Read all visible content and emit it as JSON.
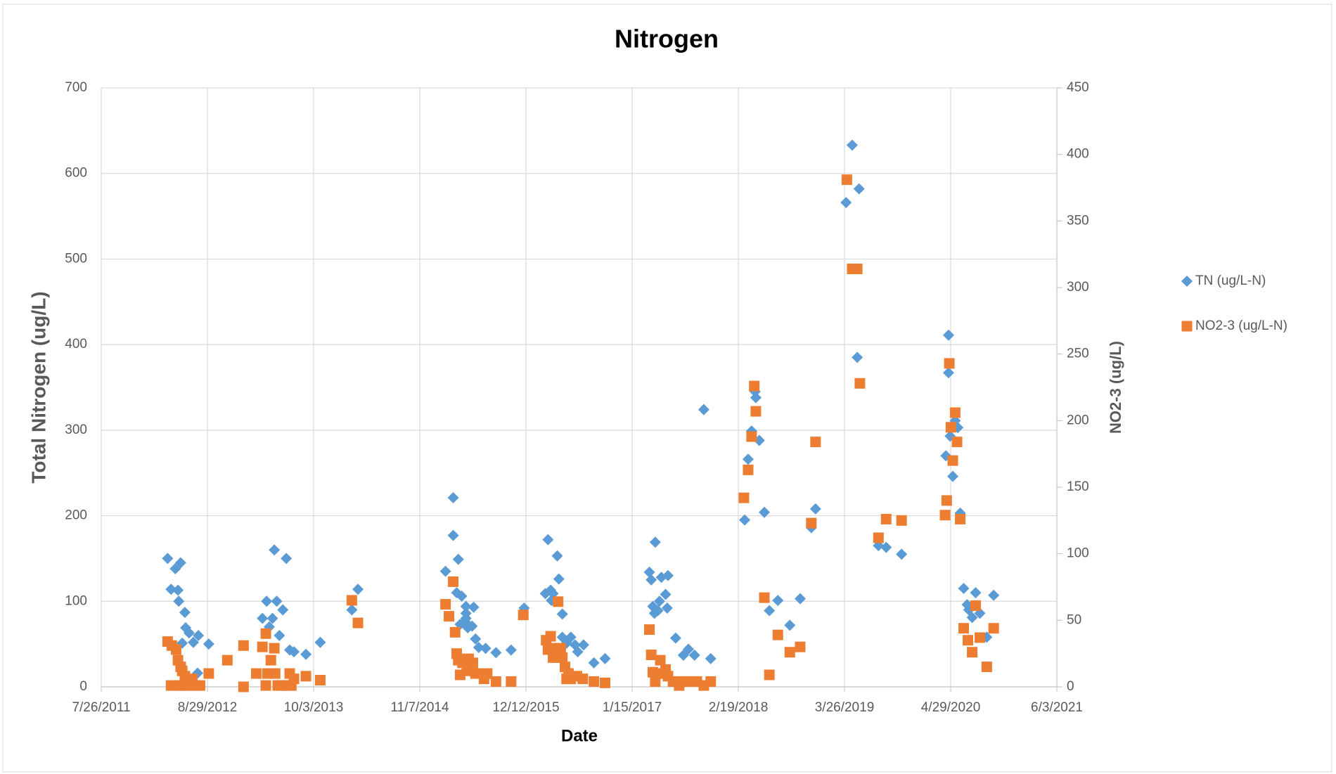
{
  "chart_data": {
    "type": "scatter",
    "title": "Nitrogen",
    "x_label": "Date",
    "y_label": "Total Nitrogen (ug/L)",
    "y2_label": "NO2-3 (ug/L)",
    "xlim": [
      40750,
      44350
    ],
    "xticks": [
      {
        "value": 40750,
        "label": "7/26/2011"
      },
      {
        "value": 41150,
        "label": "8/29/2012"
      },
      {
        "value": 41550,
        "label": "10/3/2013"
      },
      {
        "value": 41950,
        "label": "11/7/2014"
      },
      {
        "value": 42350,
        "label": "12/12/2015"
      },
      {
        "value": 42750,
        "label": "1/15/2017"
      },
      {
        "value": 43150,
        "label": "2/19/2018"
      },
      {
        "value": 43550,
        "label": "3/26/2019"
      },
      {
        "value": 43950,
        "label": "4/29/2020"
      },
      {
        "value": 44350,
        "label": "6/3/2021"
      }
    ],
    "ylim": [
      0,
      700
    ],
    "yticks": [
      0,
      100,
      200,
      300,
      400,
      500,
      600,
      700
    ],
    "y2lim": [
      0,
      450
    ],
    "y2ticks": [
      0,
      50,
      100,
      150,
      200,
      250,
      300,
      350,
      400,
      450
    ],
    "grid": true,
    "legend": "right",
    "series": [
      {
        "name": "TN (ug/L-N)",
        "color": "#5b9bd5",
        "marker": "diamond",
        "x": [
          41000,
          41013,
          41029,
          41039,
          41049,
          41042,
          41065,
          41055,
          41068,
          41081,
          41097,
          41116,
          41113,
          41155,
          41357,
          41373,
          41383,
          41395,
          41402,
          41411,
          41421,
          41434,
          41447,
          41460,
          41476,
          41521,
          41575,
          41694,
          41717,
          42047,
          42076,
          42076,
          42095,
          42089,
          42108,
          42102,
          42121,
          42124,
          42124,
          42124,
          42131,
          42147,
          42153,
          42160,
          42172,
          42198,
          42237,
          42294,
          42343,
          42423,
          42433,
          42443,
          42452,
          42446,
          42468,
          42474,
          42487,
          42487,
          42503,
          42519,
          42535,
          42545,
          42567,
          42606,
          42648,
          42815,
          42822,
          42837,
          42828,
          42834,
          42847,
          42853,
          42860,
          42876,
          42885,
          42882,
          42914,
          42943,
          42962,
          42985,
          43020,
          43046,
          43174,
          43187,
          43200,
          43213,
          43216,
          43229,
          43248,
          43267,
          43299,
          43344,
          43383,
          43425,
          43441,
          43556,
          43579,
          43605,
          43598,
          43678,
          43707,
          43765,
          43942,
          43932,
          43942,
          43948,
          43958,
          43967,
          43977,
          43986,
          43999,
          44012,
          44018,
          44031,
          44044,
          44060,
          44086,
          44112
        ],
        "values": [
          150,
          114,
          138,
          113,
          145,
          100,
          87,
          51,
          69,
          63,
          52,
          60,
          16,
          50,
          80,
          100,
          70,
          80,
          160,
          100,
          60,
          90,
          150,
          43,
          41,
          38,
          52,
          90,
          114,
          135,
          221,
          177,
          149,
          110,
          106,
          73,
          76,
          94,
          86,
          80,
          69,
          71,
          93,
          56,
          46,
          45,
          40,
          43,
          92,
          109,
          172,
          113,
          109,
          101,
          153,
          126,
          85,
          58,
          51,
          58,
          49,
          41,
          49,
          28,
          33,
          134,
          125,
          169,
          94,
          86,
          89,
          100,
          128,
          108,
          130,
          92,
          57,
          37,
          44,
          37,
          324,
          33,
          195,
          266,
          299,
          345,
          338,
          288,
          204,
          89,
          101,
          72,
          103,
          186,
          208,
          566,
          633,
          582,
          385,
          165,
          163,
          155,
          411,
          270,
          367,
          293,
          246,
          311,
          303,
          203,
          115,
          96,
          90,
          81,
          110,
          86,
          58,
          107
        ]
      },
      {
        "name": "NO2-3 (ug/L-N)",
        "color": "#ed7d31",
        "marker": "square",
        "axis": "y2",
        "x": [
          41000,
          41016,
          41032,
          41039,
          41049,
          41055,
          41065,
          41074,
          41013,
          41042,
          41061,
          41081,
          41093,
          41103,
          41122,
          41155,
          41225,
          41286,
          41286,
          41334,
          41357,
          41370,
          41376,
          41389,
          41402,
          41370,
          41405,
          41415,
          41431,
          41447,
          41460,
          41466,
          41476,
          41521,
          41575,
          41694,
          41717,
          42047,
          42060,
          42076,
          42083,
          42089,
          42095,
          42102,
          42111,
          42121,
          42127,
          42134,
          42140,
          42150,
          42160,
          42182,
          42192,
          42204,
          42237,
          42294,
          42340,
          42426,
          42433,
          42443,
          42452,
          42459,
          42465,
          42471,
          42481,
          42487,
          42497,
          42503,
          42510,
          42519,
          42542,
          42564,
          42606,
          42648,
          42815,
          42822,
          42828,
          42837,
          42847,
          42856,
          42866,
          42876,
          42885,
          42904,
          42927,
          42936,
          42952,
          42975,
          42994,
          43020,
          43046,
          43171,
          43187,
          43200,
          43210,
          43216,
          43248,
          43267,
          43299,
          43344,
          43383,
          43425,
          43441,
          43559,
          43579,
          43598,
          43608,
          43678,
          43707,
          43765,
          43929,
          43935,
          43945,
          43951,
          43958,
          43967,
          43974,
          43986,
          43999,
          44015,
          44031,
          44044,
          44060,
          44086,
          44112
        ],
        "values": [
          34,
          31,
          28,
          20,
          15,
          12,
          8,
          4,
          1,
          1,
          1,
          1,
          6,
          1,
          1,
          10,
          20,
          31,
          0,
          10,
          30,
          40,
          10,
          20,
          29,
          1,
          10,
          1,
          1,
          1,
          10,
          1,
          6,
          8,
          5,
          65,
          48,
          62,
          53,
          79,
          41,
          25,
          20,
          9,
          18,
          21,
          16,
          21,
          12,
          18,
          10,
          10,
          6,
          10,
          4,
          4,
          54,
          35,
          28,
          38,
          22,
          29,
          22,
          64,
          29,
          22,
          15,
          6,
          10,
          6,
          8,
          6,
          4,
          3,
          43,
          24,
          11,
          4,
          10,
          20,
          10,
          13,
          8,
          4,
          1,
          4,
          4,
          4,
          4,
          1,
          4,
          142,
          163,
          188,
          226,
          207,
          67,
          9,
          39,
          26,
          30,
          123,
          184,
          381,
          314,
          314,
          228,
          112,
          126,
          125,
          129,
          140,
          243,
          195,
          170,
          206,
          184,
          126,
          44,
          35,
          26,
          61,
          37,
          15,
          44
        ]
      }
    ]
  }
}
